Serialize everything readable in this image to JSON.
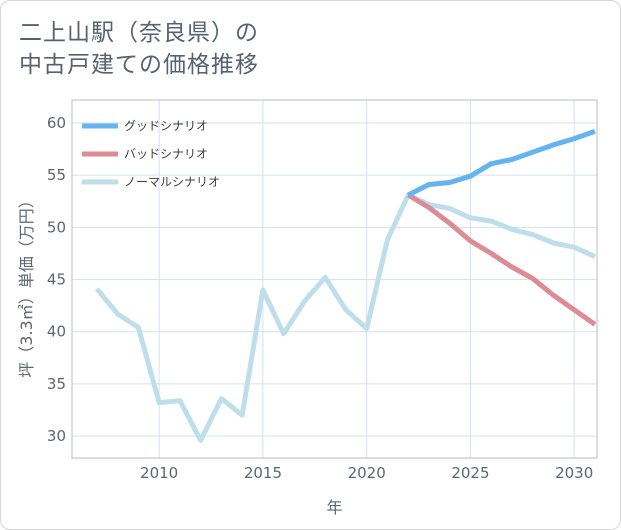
{
  "page": {
    "title_line1": "二上山駅（奈良県）の",
    "title_line2": "中古戸建ての価格推移"
  },
  "chart_data": {
    "type": "line",
    "title": "二上山駅（奈良県）の中古戸建ての価格推移",
    "xlabel": "年",
    "ylabel": "坪（3.3㎡）単価（万円）",
    "xlim": [
      2005.8,
      2031.1
    ],
    "ylim": [
      27.9,
      62.2
    ],
    "xticks": [
      2010,
      2015,
      2020,
      2025,
      2030
    ],
    "yticks": [
      30,
      35,
      40,
      45,
      50,
      55,
      60
    ],
    "grid": true,
    "legend_position": "top-left",
    "series": [
      {
        "name": "グッドシナリオ",
        "color": "#64b4f0",
        "x": [
          2022,
          2023,
          2024,
          2025,
          2026,
          2027,
          2028,
          2029,
          2030,
          2031
        ],
        "y": [
          53.1,
          54.1,
          54.3,
          54.9,
          56.1,
          56.5,
          57.2,
          57.9,
          58.5,
          59.2
        ]
      },
      {
        "name": "バッドシナリオ",
        "color": "#dc8c94",
        "x": [
          2022,
          2023,
          2024,
          2025,
          2026,
          2027,
          2028,
          2029,
          2030,
          2031
        ],
        "y": [
          53.1,
          51.9,
          50.4,
          48.7,
          47.5,
          46.2,
          45.1,
          43.5,
          42.1,
          40.7
        ]
      },
      {
        "name": "ノーマルシナリオ",
        "color": "#bfdeec",
        "x": [
          2007,
          2008,
          2009,
          2010,
          2011,
          2012,
          2013,
          2014,
          2015,
          2016,
          2017,
          2018,
          2019,
          2020,
          2021,
          2022,
          2023,
          2024,
          2025,
          2026,
          2027,
          2028,
          2029,
          2030,
          2031
        ],
        "y": [
          44.1,
          41.7,
          40.4,
          33.2,
          33.4,
          29.6,
          33.6,
          32.0,
          44.0,
          39.8,
          42.9,
          45.2,
          42.1,
          40.3,
          48.8,
          53.1,
          52.2,
          51.8,
          50.9,
          50.6,
          49.8,
          49.3,
          48.5,
          48.1,
          47.2
        ]
      }
    ]
  }
}
